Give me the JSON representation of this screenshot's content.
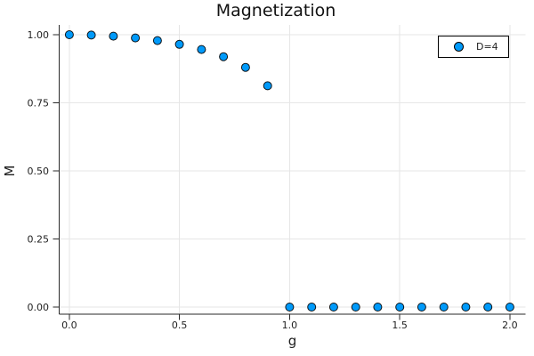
{
  "chart_data": {
    "type": "scatter",
    "title": "Magnetization",
    "xlabel": "g",
    "ylabel": "M",
    "xlim": [
      -0.046,
      2.071
    ],
    "ylim": [
      -0.026,
      1.036
    ],
    "grid": true,
    "xticks": {
      "values": [
        0.0,
        0.5,
        1.0,
        1.5,
        2.0
      ],
      "labels": [
        "0.0",
        "0.5",
        "1.0",
        "1.5",
        "2.0"
      ]
    },
    "yticks": {
      "values": [
        0.0,
        0.25,
        0.5,
        0.75,
        1.0
      ],
      "labels": [
        "0.00",
        "0.25",
        "0.50",
        "0.75",
        "1.00"
      ]
    },
    "legend": {
      "position": "top-right",
      "entries": [
        "D=4"
      ]
    },
    "series": [
      {
        "name": "D=4",
        "marker": "circle",
        "x": [
          0.0,
          0.1,
          0.2,
          0.3,
          0.4,
          0.5,
          0.6,
          0.7,
          0.8,
          0.9,
          1.0,
          1.1,
          1.2,
          1.3,
          1.4,
          1.5,
          1.6,
          1.7,
          1.8,
          1.9,
          2.0
        ],
        "y": [
          1.0,
          0.9987,
          0.9949,
          0.9883,
          0.9784,
          0.9647,
          0.9457,
          0.9192,
          0.8801,
          0.8125,
          0.0,
          0.0,
          0.0,
          0.0,
          0.0,
          0.0,
          0.0,
          0.0,
          0.0,
          0.0,
          0.0
        ]
      }
    ],
    "colors": {
      "series_fill": "#009AFA",
      "marker_stroke": "#000000",
      "grid": "#E6E6E6",
      "axis": "#2A2A2A",
      "text": "#1F1F1F",
      "background": "#FFFFFF",
      "legend_border": "#000000",
      "legend_background": "#FFFFFF"
    }
  }
}
